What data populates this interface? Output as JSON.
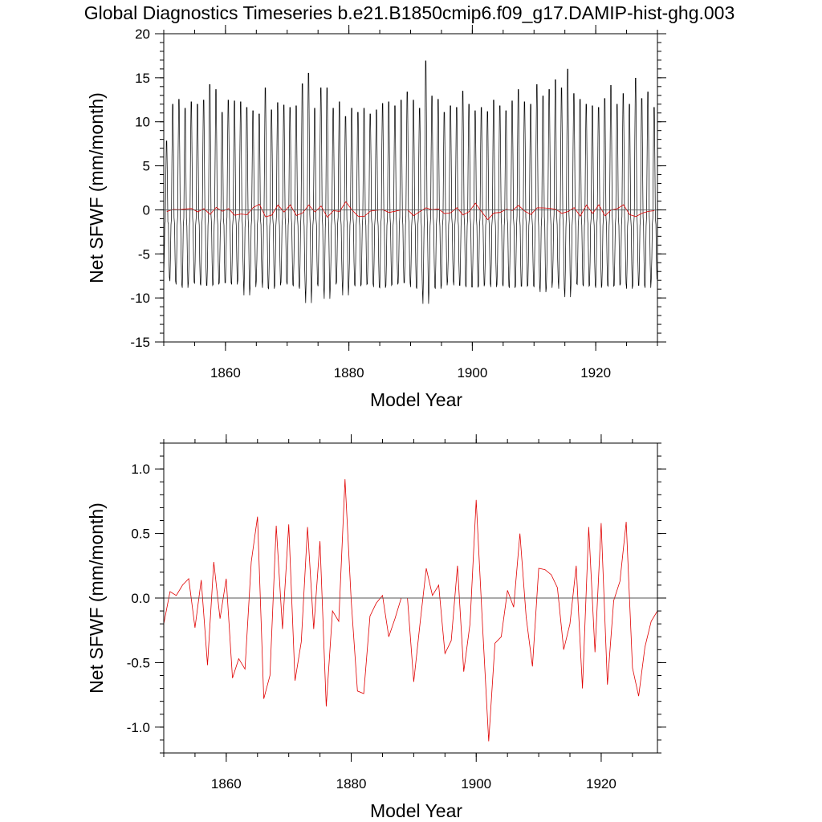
{
  "figure": {
    "title": "Global Diagnostics Timeseries b.e21.B1850cmip6.f09_g17.DAMIP-hist-ghg.003"
  },
  "chart_data": [
    {
      "type": "line",
      "xlabel": "Model Year",
      "ylabel": "Net SFWF (mm/month)",
      "xlim": [
        1850,
        1930
      ],
      "ylim": [
        -15,
        20
      ],
      "xticks": [
        1860,
        1880,
        1900,
        1920
      ],
      "xtick_labels": [
        "1860",
        "1880",
        "1900",
        "1920"
      ],
      "yticks": [
        -15,
        -10,
        -5,
        0,
        5,
        10,
        15,
        20
      ],
      "ytick_labels": [
        "-15",
        "-10",
        "-5",
        "0",
        "5",
        "10",
        "15",
        "20"
      ],
      "reference_line": 0,
      "series": [
        {
          "color": "#000000",
          "description": "monthly values, seasonal cycle",
          "x_start": 1850,
          "x_step": 0.08333,
          "annual_peaks": [
            8.5,
            13.0,
            13.6,
            12.5,
            13.3,
            13.0,
            13.5,
            15.4,
            14.8,
            12.0,
            13.5,
            13.4,
            13.3,
            12.6,
            12.2,
            11.8,
            15.0,
            12.3,
            13.2,
            12.9,
            12.6,
            12.8,
            15.5,
            16.8,
            12.5,
            15.0,
            15.0,
            12.5,
            13.3,
            11.5,
            12.5,
            12.0,
            12.5,
            11.8,
            12.3,
            13.1,
            13.3,
            12.8,
            13.5,
            14.5,
            13.5,
            12.5,
            18.3,
            14.0,
            13.6,
            12.0,
            12.8,
            12.6,
            14.6,
            13.0,
            12.2,
            12.6,
            12.1,
            13.5,
            12.8,
            12.2,
            13.4,
            14.8,
            13.3,
            13.0,
            15.4,
            14.0,
            14.8,
            16.0,
            15.0,
            17.3,
            14.3,
            13.6,
            13.0,
            12.8,
            12.6,
            13.7,
            15.3,
            13.0,
            14.3,
            13.0,
            16.2,
            13.7,
            14.5,
            12.6
          ],
          "annual_troughs": [
            -9.6,
            -10.1,
            -10.5,
            -10.9,
            -10.2,
            -10.4,
            -10.6,
            -10.6,
            -10.5,
            -10.3,
            -10.3,
            -10.5,
            -10.0,
            -11.8,
            -10.8,
            -10.1,
            -10.9,
            -11.0,
            -10.6,
            -10.2,
            -10.5,
            -10.7,
            -11.0,
            -12.7,
            -10.4,
            -10.7,
            -12.2,
            -10.5,
            -10.2,
            -11.8,
            -10.5,
            -10.7,
            -10.5,
            -10.4,
            -10.8,
            -10.9,
            -10.6,
            -10.5,
            -10.3,
            -10.3,
            -10.8,
            -11.0,
            -12.8,
            -10.8,
            -11.0,
            -10.6,
            -10.1,
            -10.6,
            -10.6,
            -10.8,
            -10.8,
            -10.7,
            -10.4,
            -10.8,
            -10.5,
            -10.7,
            -10.9,
            -10.7,
            -10.7,
            -10.6,
            -10.8,
            -11.4,
            -10.9,
            -10.1,
            -11.0,
            -12.0,
            -10.4,
            -10.5,
            -10.7,
            -10.6,
            -10.9,
            -10.6,
            -10.7,
            -10.6,
            -10.4,
            -11.0,
            -10.6,
            -10.6,
            -10.9,
            -9.9
          ]
        },
        {
          "color": "#e00000",
          "description": "annual means",
          "x": [
            1850.5,
            1851.5,
            1852.5,
            1853.5,
            1854.5,
            1855.5,
            1856.5,
            1857.5,
            1858.5,
            1859.5,
            1860.5,
            1861.5,
            1862.5,
            1863.5,
            1864.5,
            1865.5,
            1866.5,
            1867.5,
            1868.5,
            1869.5,
            1870.5,
            1871.5,
            1872.5,
            1873.5,
            1874.5,
            1875.5,
            1876.5,
            1877.5,
            1878.5,
            1879.5,
            1880.5,
            1881.5,
            1882.5,
            1883.5,
            1884.5,
            1885.5,
            1886.5,
            1887.5,
            1888.5,
            1889.5,
            1890.5,
            1891.5,
            1892.5,
            1893.5,
            1894.5,
            1895.5,
            1896.5,
            1897.5,
            1898.5,
            1899.5,
            1900.5,
            1901.5,
            1902.5,
            1903.5,
            1904.5,
            1905.5,
            1906.5,
            1907.5,
            1908.5,
            1909.5,
            1910.5,
            1911.5,
            1912.5,
            1913.5,
            1914.5,
            1915.5,
            1916.5,
            1917.5,
            1918.5,
            1919.5,
            1920.5,
            1921.5,
            1922.5,
            1923.5,
            1924.5,
            1925.5,
            1926.5,
            1927.5,
            1928.5,
            1929.5
          ],
          "y": [
            -0.2,
            0.05,
            0.02,
            0.1,
            0.15,
            -0.23,
            0.14,
            -0.52,
            0.28,
            -0.16,
            0.15,
            -0.62,
            -0.47,
            -0.55,
            0.28,
            0.63,
            -0.78,
            -0.6,
            0.56,
            -0.24,
            0.57,
            -0.64,
            -0.34,
            0.55,
            -0.24,
            0.44,
            -0.84,
            -0.1,
            -0.18,
            0.92,
            -0.02,
            -0.72,
            -0.74,
            -0.14,
            -0.04,
            0.02,
            -0.3,
            -0.16,
            0.0,
            0.0,
            -0.65,
            -0.2,
            0.23,
            0.02,
            0.1,
            -0.43,
            -0.33,
            0.25,
            -0.57,
            -0.2,
            0.76,
            -0.2,
            -1.11,
            -0.35,
            -0.3,
            0.06,
            -0.07,
            0.5,
            -0.15,
            -0.53,
            0.23,
            0.22,
            0.18,
            0.08,
            -0.4,
            -0.2,
            0.25,
            -0.7,
            0.55,
            -0.42,
            0.58,
            -0.67,
            -0.02,
            0.13,
            0.59,
            -0.54,
            -0.76,
            -0.38,
            -0.18,
            -0.1
          ]
        }
      ]
    },
    {
      "type": "line",
      "xlabel": "Model Year",
      "ylabel": "Net SFWF (mm/month)",
      "xlim": [
        1850,
        1929
      ],
      "ylim": [
        -1.2,
        1.2
      ],
      "xticks": [
        1860,
        1880,
        1900,
        1920
      ],
      "xtick_labels": [
        "1860",
        "1880",
        "1900",
        "1920"
      ],
      "yticks": [
        -1.0,
        -0.5,
        0.0,
        0.5,
        1.0
      ],
      "ytick_labels": [
        "-1.0",
        "-0.5",
        "0.0",
        "0.5",
        "1.0"
      ],
      "reference_line": 0,
      "series": [
        {
          "color": "#e00000",
          "description": "annual means",
          "x": [
            1850.0,
            1851.0,
            1852.0,
            1853.0,
            1854.0,
            1855.0,
            1856.0,
            1857.0,
            1858.0,
            1859.0,
            1860.0,
            1861.0,
            1862.0,
            1863.0,
            1864.0,
            1865.0,
            1866.0,
            1867.0,
            1868.0,
            1869.0,
            1870.0,
            1871.0,
            1872.0,
            1873.0,
            1874.0,
            1875.0,
            1876.0,
            1877.0,
            1878.0,
            1879.0,
            1880.0,
            1881.0,
            1882.0,
            1883.0,
            1884.0,
            1885.0,
            1886.0,
            1887.0,
            1888.0,
            1889.0,
            1890.0,
            1891.0,
            1892.0,
            1893.0,
            1894.0,
            1895.0,
            1896.0,
            1897.0,
            1898.0,
            1899.0,
            1900.0,
            1901.0,
            1902.0,
            1903.0,
            1904.0,
            1905.0,
            1906.0,
            1907.0,
            1908.0,
            1909.0,
            1910.0,
            1911.0,
            1912.0,
            1913.0,
            1914.0,
            1915.0,
            1916.0,
            1917.0,
            1918.0,
            1919.0,
            1920.0,
            1921.0,
            1922.0,
            1923.0,
            1924.0,
            1925.0,
            1926.0,
            1927.0,
            1928.0,
            1929.0
          ],
          "y": [
            -0.2,
            0.05,
            0.02,
            0.1,
            0.15,
            -0.23,
            0.14,
            -0.52,
            0.28,
            -0.16,
            0.15,
            -0.62,
            -0.47,
            -0.55,
            0.28,
            0.63,
            -0.78,
            -0.6,
            0.56,
            -0.24,
            0.57,
            -0.64,
            -0.34,
            0.55,
            -0.24,
            0.44,
            -0.84,
            -0.1,
            -0.18,
            0.92,
            -0.02,
            -0.72,
            -0.74,
            -0.14,
            -0.04,
            0.02,
            -0.3,
            -0.16,
            0.0,
            0.0,
            -0.65,
            -0.2,
            0.23,
            0.02,
            0.1,
            -0.43,
            -0.33,
            0.25,
            -0.57,
            -0.2,
            0.76,
            -0.2,
            -1.11,
            -0.35,
            -0.3,
            0.06,
            -0.07,
            0.5,
            -0.15,
            -0.53,
            0.23,
            0.22,
            0.18,
            0.08,
            -0.4,
            -0.2,
            0.25,
            -0.7,
            0.55,
            -0.42,
            0.58,
            -0.67,
            -0.02,
            0.13,
            0.59,
            -0.54,
            -0.76,
            -0.38,
            -0.18,
            -0.1
          ]
        }
      ]
    }
  ]
}
